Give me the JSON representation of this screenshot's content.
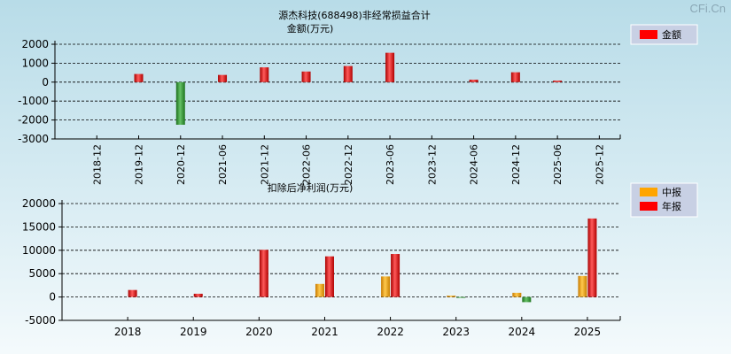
{
  "watermark": "CFi.Cn",
  "chart_data": [
    {
      "type": "bar",
      "title": "源杰科技(688498)非经常损益合计",
      "subtitle": "金额(万元)",
      "categories": [
        "2018-12",
        "2019-12",
        "2020-12",
        "2021-06",
        "2021-12",
        "2022-06",
        "2022-12",
        "2023-06",
        "2023-12",
        "2024-06",
        "2024-12",
        "2025-06",
        "2025-12"
      ],
      "series": [
        {
          "name": "金额",
          "color": "#ff0000",
          "values": [
            null,
            430,
            -2250,
            380,
            780,
            560,
            850,
            1550,
            null,
            130,
            520,
            80,
            null
          ]
        }
      ],
      "ylim": [
        -3000,
        2000
      ],
      "yticks": [
        2000,
        1000,
        0,
        -1000,
        -2000,
        -3000
      ],
      "legend": "top-right"
    },
    {
      "type": "bar",
      "title": "扣除后净利润(万元)",
      "categories": [
        "2018",
        "2019",
        "2020",
        "2021",
        "2022",
        "2023",
        "2024",
        "2025"
      ],
      "series": [
        {
          "name": "中报",
          "color": "#ffa500",
          "values": [
            null,
            null,
            null,
            2800,
            4400,
            300,
            900,
            4500
          ]
        },
        {
          "name": "年报",
          "color": "#ff0000",
          "values": [
            1500,
            700,
            10100,
            8700,
            9200,
            -100,
            -1100,
            16800
          ]
        }
      ],
      "ylim": [
        -5000,
        20000
      ],
      "yticks": [
        20000,
        15000,
        10000,
        5000,
        0,
        -5000
      ],
      "legend": "top-right"
    }
  ]
}
